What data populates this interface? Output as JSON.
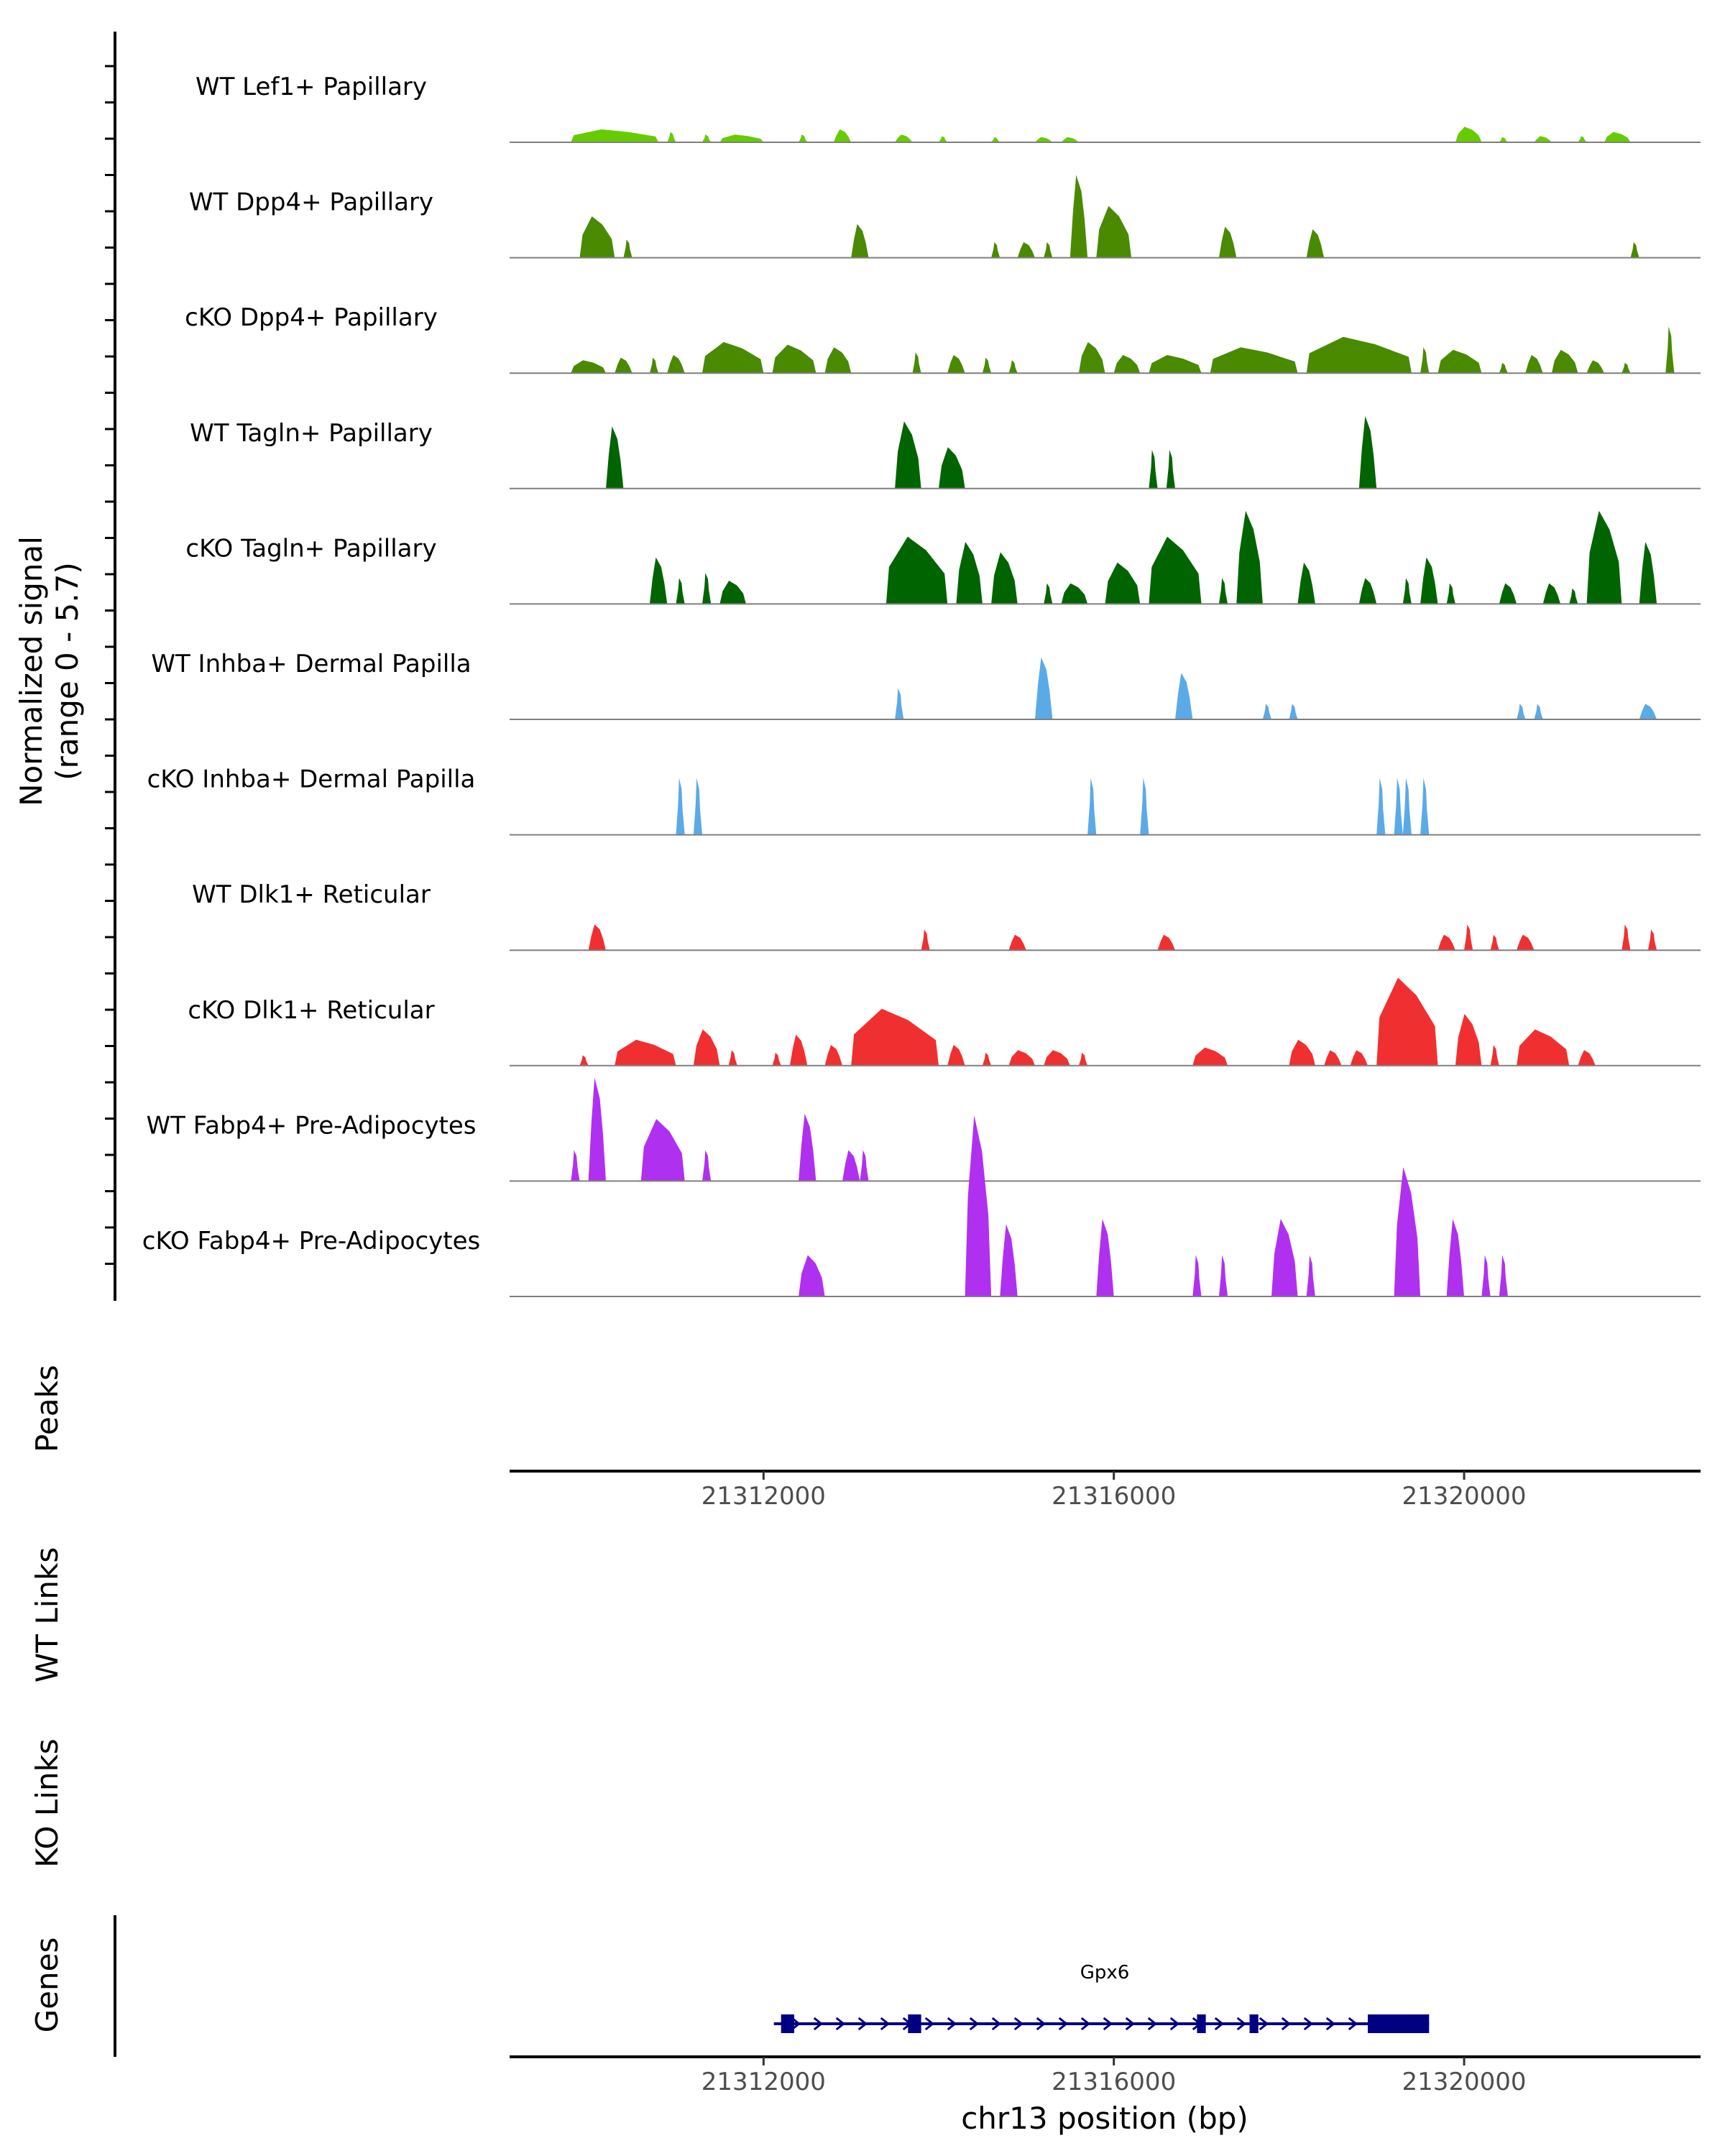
{
  "chart_data": {
    "type": "area",
    "chromosome": "chr13",
    "xlim": [
      21309100,
      21322700
    ],
    "y_axis_title_line1": "Normalized signal",
    "y_axis_title_line2": "(range 0 - 5.7)",
    "ylim": [
      0,
      5.7
    ],
    "x_axis_title": "chr13 position (bp)",
    "x_ticks": [
      {
        "value": 21312000,
        "label": "21312000"
      },
      {
        "value": 21316000,
        "label": "21316000"
      },
      {
        "value": 21320000,
        "label": "21320000"
      }
    ],
    "colors": {
      "lightgreen": "#66cc00",
      "midgreen": "#4a8a00",
      "darkgreen": "#006400",
      "blue": "#5aaae8",
      "red": "#f03030",
      "purple": "#b030f0",
      "gene": "#000080",
      "baseline": "#7f7f7f"
    },
    "tracks": [
      {
        "name": "WT Lef1+ Papillary",
        "color": "#66cc00",
        "peaks": [
          [
            21309800,
            21310800,
            0.25
          ],
          [
            21310900,
            21311000,
            0.2
          ],
          [
            21311300,
            21311400,
            0.15
          ],
          [
            21311500,
            21312000,
            0.15
          ],
          [
            21312400,
            21312500,
            0.15
          ],
          [
            21312800,
            21313000,
            0.25
          ],
          [
            21313500,
            21313700,
            0.15
          ],
          [
            21314000,
            21314100,
            0.12
          ],
          [
            21314600,
            21314700,
            0.1
          ],
          [
            21315100,
            21315300,
            0.1
          ],
          [
            21315400,
            21315600,
            0.1
          ],
          [
            21319900,
            21320200,
            0.3
          ],
          [
            21320400,
            21320500,
            0.1
          ],
          [
            21320800,
            21321000,
            0.12
          ],
          [
            21321300,
            21321400,
            0.12
          ],
          [
            21321600,
            21321900,
            0.2
          ]
        ]
      },
      {
        "name": "WT Dpp4+ Papillary",
        "color": "#4a8a00",
        "peaks": [
          [
            21309900,
            21310300,
            0.8
          ],
          [
            21310400,
            21310500,
            0.35
          ],
          [
            21313000,
            21313200,
            0.65
          ],
          [
            21314600,
            21314700,
            0.3
          ],
          [
            21314900,
            21315100,
            0.3
          ],
          [
            21315200,
            21315300,
            0.3
          ],
          [
            21315500,
            21315700,
            1.6
          ],
          [
            21315800,
            21316200,
            1.0
          ],
          [
            21317200,
            21317400,
            0.6
          ],
          [
            21318200,
            21318400,
            0.55
          ],
          [
            21321900,
            21322000,
            0.3
          ]
        ]
      },
      {
        "name": "cKO Dpp4+ Papillary",
        "color": "#4a8a00",
        "peaks": [
          [
            21309800,
            21310200,
            0.25
          ],
          [
            21310300,
            21310500,
            0.3
          ],
          [
            21310700,
            21310800,
            0.3
          ],
          [
            21310900,
            21311100,
            0.35
          ],
          [
            21311300,
            21312000,
            0.6
          ],
          [
            21312100,
            21312600,
            0.55
          ],
          [
            21312700,
            21313000,
            0.5
          ],
          [
            21313700,
            21313800,
            0.4
          ],
          [
            21314100,
            21314300,
            0.35
          ],
          [
            21314500,
            21314600,
            0.3
          ],
          [
            21314800,
            21314900,
            0.25
          ],
          [
            21315600,
            21315900,
            0.6
          ],
          [
            21316000,
            21316300,
            0.35
          ],
          [
            21316400,
            21317000,
            0.35
          ],
          [
            21317100,
            21318100,
            0.5
          ],
          [
            21318200,
            21319400,
            0.7
          ],
          [
            21319500,
            21319600,
            0.5
          ],
          [
            21319700,
            21320200,
            0.45
          ],
          [
            21320400,
            21320500,
            0.2
          ],
          [
            21320700,
            21320900,
            0.35
          ],
          [
            21321000,
            21321300,
            0.45
          ],
          [
            21321400,
            21321600,
            0.25
          ],
          [
            21321800,
            21321900,
            0.2
          ],
          [
            21322300,
            21322400,
            0.9
          ]
        ]
      },
      {
        "name": "WT Tagln+ Papillary",
        "color": "#006400",
        "peaks": [
          [
            21310200,
            21310400,
            1.2
          ],
          [
            21313500,
            21313800,
            1.3
          ],
          [
            21314000,
            21314300,
            0.8
          ],
          [
            21316400,
            21316500,
            0.75
          ],
          [
            21316600,
            21316700,
            0.75
          ],
          [
            21318800,
            21319000,
            1.4
          ]
        ]
      },
      {
        "name": "cKO Tagln+ Papillary",
        "color": "#006400",
        "peaks": [
          [
            21310700,
            21310900,
            0.9
          ],
          [
            21311000,
            21311100,
            0.5
          ],
          [
            21311300,
            21311400,
            0.6
          ],
          [
            21311500,
            21311800,
            0.45
          ],
          [
            21313400,
            21314100,
            1.3
          ],
          [
            21314200,
            21314500,
            1.2
          ],
          [
            21314600,
            21314900,
            1.0
          ],
          [
            21315200,
            21315300,
            0.4
          ],
          [
            21315400,
            21315700,
            0.4
          ],
          [
            21315900,
            21316300,
            0.8
          ],
          [
            21316400,
            21317000,
            1.3
          ],
          [
            21317200,
            21317300,
            0.5
          ],
          [
            21317400,
            21317700,
            1.8
          ],
          [
            21318100,
            21318300,
            0.8
          ],
          [
            21318800,
            21319000,
            0.5
          ],
          [
            21319300,
            21319400,
            0.5
          ],
          [
            21319500,
            21319700,
            0.9
          ],
          [
            21319800,
            21319900,
            0.4
          ],
          [
            21320400,
            21320600,
            0.4
          ],
          [
            21320900,
            21321100,
            0.4
          ],
          [
            21321200,
            21321300,
            0.3
          ],
          [
            21321400,
            21321800,
            1.8
          ],
          [
            21322000,
            21322200,
            1.2
          ]
        ]
      },
      {
        "name": "WT Inhba+ Dermal Papilla",
        "color": "#5aaae8",
        "peaks": [
          [
            21313500,
            21313600,
            0.6
          ],
          [
            21315100,
            21315300,
            1.2
          ],
          [
            21316700,
            21316900,
            0.9
          ],
          [
            21317700,
            21317800,
            0.3
          ],
          [
            21318000,
            21318100,
            0.3
          ],
          [
            21320600,
            21320700,
            0.3
          ],
          [
            21320800,
            21320900,
            0.3
          ],
          [
            21322000,
            21322200,
            0.3
          ]
        ]
      },
      {
        "name": "cKO Inhba+ Dermal Papilla",
        "color": "#5aaae8",
        "peaks": [
          [
            21311000,
            21311100,
            1.1
          ],
          [
            21311200,
            21311300,
            1.1
          ],
          [
            21315700,
            21315800,
            1.1
          ],
          [
            21316300,
            21316400,
            1.1
          ],
          [
            21319000,
            21319100,
            1.1
          ],
          [
            21319200,
            21319300,
            1.1
          ],
          [
            21319300,
            21319400,
            1.1
          ],
          [
            21319500,
            21319600,
            1.1
          ]
        ]
      },
      {
        "name": "WT Dlk1+ Reticular",
        "color": "#f03030",
        "peaks": [
          [
            21310000,
            21310200,
            0.5
          ],
          [
            21313800,
            21313900,
            0.4
          ],
          [
            21314800,
            21315000,
            0.3
          ],
          [
            21316500,
            21316700,
            0.3
          ],
          [
            21319700,
            21319900,
            0.3
          ],
          [
            21320000,
            21320100,
            0.5
          ],
          [
            21320300,
            21320400,
            0.3
          ],
          [
            21320600,
            21320800,
            0.3
          ],
          [
            21321800,
            21321900,
            0.5
          ],
          [
            21322100,
            21322200,
            0.4
          ]
        ]
      },
      {
        "name": "cKO Dlk1+ Reticular",
        "color": "#f03030",
        "peaks": [
          [
            21309900,
            21310000,
            0.2
          ],
          [
            21310300,
            21311000,
            0.5
          ],
          [
            21311200,
            21311500,
            0.7
          ],
          [
            21311600,
            21311700,
            0.3
          ],
          [
            21312100,
            21312200,
            0.25
          ],
          [
            21312300,
            21312500,
            0.6
          ],
          [
            21312700,
            21312900,
            0.4
          ],
          [
            21313000,
            21314000,
            1.1
          ],
          [
            21314100,
            21314300,
            0.4
          ],
          [
            21314500,
            21314600,
            0.25
          ],
          [
            21314800,
            21315100,
            0.3
          ],
          [
            21315200,
            21315500,
            0.3
          ],
          [
            21315600,
            21315700,
            0.25
          ],
          [
            21316900,
            21317300,
            0.35
          ],
          [
            21318000,
            21318300,
            0.5
          ],
          [
            21318400,
            21318600,
            0.3
          ],
          [
            21318700,
            21318900,
            0.3
          ],
          [
            21319000,
            21319700,
            1.7
          ],
          [
            21319900,
            21320200,
            1.0
          ],
          [
            21320300,
            21320400,
            0.4
          ],
          [
            21320600,
            21321200,
            0.7
          ],
          [
            21321300,
            21321500,
            0.3
          ]
        ]
      },
      {
        "name": "WT Fabp4+ Pre-Adipocytes",
        "color": "#b030f0",
        "peaks": [
          [
            21309800,
            21309900,
            0.6
          ],
          [
            21310000,
            21310200,
            2.0
          ],
          [
            21310600,
            21311100,
            1.2
          ],
          [
            21311300,
            21311400,
            0.6
          ],
          [
            21312400,
            21312600,
            1.3
          ],
          [
            21312900,
            21313100,
            0.6
          ],
          [
            21313100,
            21313200,
            0.6
          ]
        ]
      },
      {
        "name": "cKO Fabp4+ Pre-Adipocytes",
        "color": "#b030f0",
        "peaks": [
          [
            21312400,
            21312700,
            0.8
          ],
          [
            21314300,
            21314600,
            3.5
          ],
          [
            21314700,
            21314900,
            1.4
          ],
          [
            21315800,
            21316000,
            1.5
          ],
          [
            21316900,
            21317000,
            0.8
          ],
          [
            21317200,
            21317300,
            0.8
          ],
          [
            21317800,
            21318100,
            1.5
          ],
          [
            21318200,
            21318300,
            0.8
          ],
          [
            21319200,
            21319500,
            2.5
          ],
          [
            21319800,
            21320000,
            1.5
          ],
          [
            21320200,
            21320300,
            0.8
          ],
          [
            21320400,
            21320500,
            0.8
          ]
        ]
      }
    ],
    "peaks_label": "Peaks",
    "wt_links_label": "WT Links",
    "ko_links_label": "KO Links",
    "genes_label": "Genes",
    "gene": {
      "name": "Gpx6",
      "start": 21312200,
      "end": 21319600,
      "strand": "+",
      "exons": [
        [
          21312200,
          21312350
        ],
        [
          21313650,
          21313800
        ],
        [
          21316950,
          21317050
        ],
        [
          21317550,
          21317650
        ],
        [
          21318900,
          21319600
        ]
      ]
    }
  }
}
